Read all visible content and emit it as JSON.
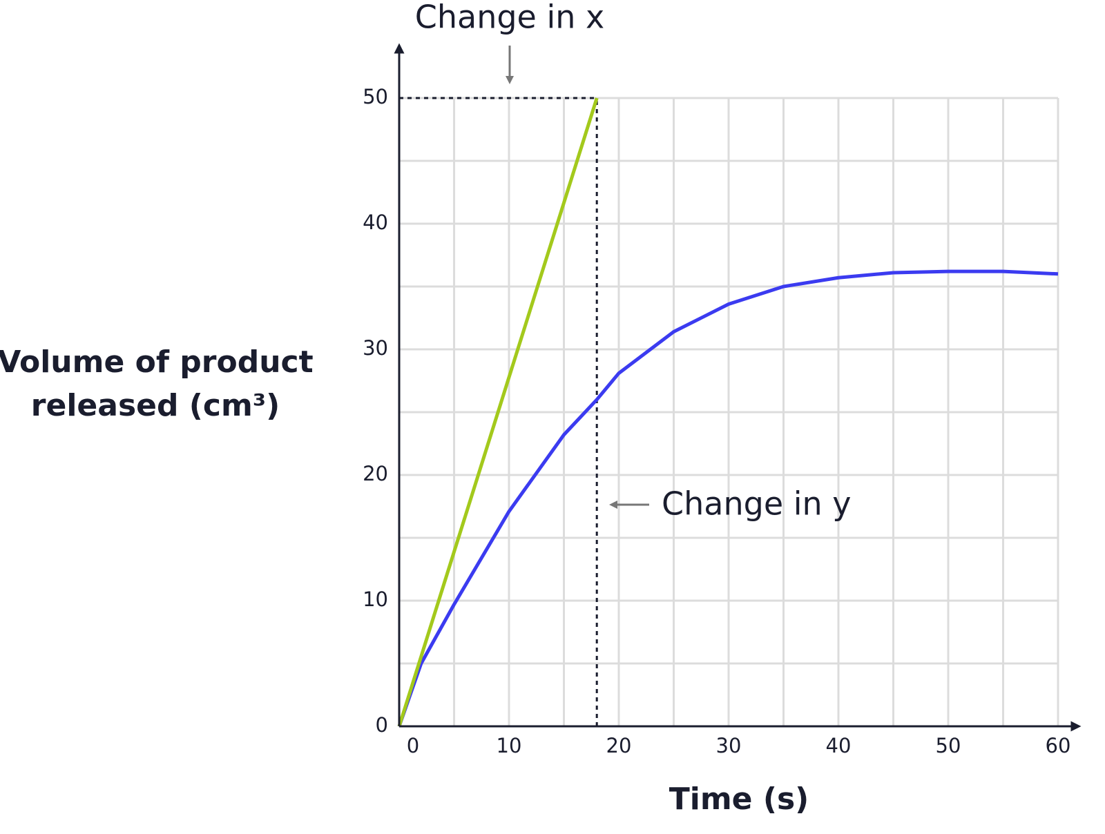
{
  "chart_data": {
    "type": "line",
    "xlabel": "Time (s)",
    "ylabel": [
      "Volume of product",
      "released (cm³)"
    ],
    "xlim": [
      0,
      60
    ],
    "ylim": [
      0,
      50
    ],
    "xticks": [
      0,
      10,
      20,
      30,
      40,
      50,
      60
    ],
    "yticks": [
      0,
      10,
      20,
      30,
      40,
      50
    ],
    "minor_xticks": [
      5,
      15,
      25,
      35,
      45,
      55
    ],
    "minor_yticks": [
      5,
      15,
      25,
      35,
      45
    ],
    "grid": true,
    "series": [
      {
        "color": "#3b3bf0",
        "x": [
          0,
          2,
          5,
          10,
          15,
          18,
          20,
          25,
          30,
          35,
          40,
          45,
          50,
          55,
          60
        ],
        "values": [
          0,
          5,
          9.7,
          17.1,
          23.2,
          26,
          28.1,
          31.4,
          33.6,
          35,
          35.7,
          36.1,
          36.2,
          36.2,
          36
        ]
      },
      {
        "color": "#a3c91c",
        "x": [
          0,
          18
        ],
        "values": [
          0,
          50
        ]
      }
    ],
    "annotations": [
      "Change in x",
      "Change in y"
    ]
  }
}
